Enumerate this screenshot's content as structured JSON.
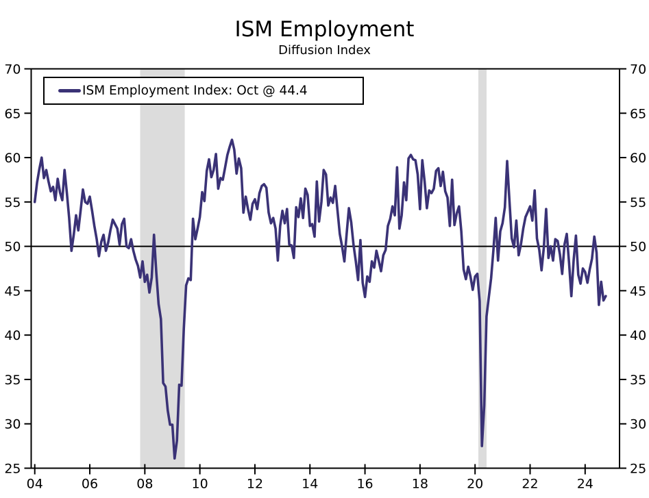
{
  "header": {
    "title": "ISM Employment",
    "subtitle": "Diffusion Index"
  },
  "legend": {
    "label": "ISM Employment Index: Oct @ 44.4",
    "swatch_color": "#3a3276"
  },
  "chart_data": {
    "type": "line",
    "title": "ISM Employment",
    "subtitle": "Diffusion Index",
    "ylim": [
      25,
      70
    ],
    "y_ticks": [
      25,
      30,
      35,
      40,
      45,
      50,
      55,
      60,
      65,
      70
    ],
    "y_ticks_labeled_both_sides": true,
    "x_range": [
      2003.87,
      2025.25
    ],
    "x_ticks": [
      {
        "year": 2004,
        "label": "04"
      },
      {
        "year": 2006,
        "label": "06"
      },
      {
        "year": 2008,
        "label": "08"
      },
      {
        "year": 2010,
        "label": "10"
      },
      {
        "year": 2012,
        "label": "12"
      },
      {
        "year": 2014,
        "label": "14"
      },
      {
        "year": 2016,
        "label": "16"
      },
      {
        "year": 2018,
        "label": "18"
      },
      {
        "year": 2020,
        "label": "20"
      },
      {
        "year": 2022,
        "label": "22"
      },
      {
        "year": 2024,
        "label": "24"
      }
    ],
    "reference_line": 50,
    "grid": false,
    "legend_position": "top-left",
    "band_color": "#dcdcdc",
    "recession_bands": [
      {
        "start": 2007.83,
        "end": 2009.45
      },
      {
        "start": 2020.12,
        "end": 2020.42
      }
    ],
    "series": [
      {
        "name": "ISM Employment Index",
        "latest_label": "Oct @ 44.4",
        "latest_value": 44.4,
        "color": "#3a3276",
        "frequency": "monthly",
        "start_year": 2004,
        "start_month": 1,
        "values": [
          55.0,
          57.2,
          58.7,
          60.0,
          57.7,
          58.6,
          57.3,
          56.2,
          56.7,
          55.2,
          57.6,
          56.1,
          55.2,
          58.6,
          56.0,
          53.2,
          49.5,
          51.3,
          53.5,
          51.8,
          54.0,
          56.4,
          55.0,
          54.8,
          55.6,
          54.0,
          52.3,
          50.8,
          48.9,
          50.5,
          51.3,
          49.5,
          50.4,
          51.8,
          53.0,
          52.5,
          52.0,
          50.2,
          52.5,
          53.1,
          50.0,
          49.8,
          50.8,
          49.5,
          48.5,
          47.8,
          46.5,
          48.3,
          46.0,
          46.8,
          44.8,
          46.5,
          51.3,
          47.0,
          43.5,
          41.8,
          34.6,
          34.2,
          31.5,
          29.9,
          29.9,
          26.1,
          28.1,
          34.4,
          34.3,
          40.7,
          45.6,
          46.4,
          46.2,
          53.1,
          50.8,
          52.0,
          53.3,
          56.1,
          55.1,
          58.5,
          59.8,
          57.8,
          58.6,
          60.4,
          56.5,
          57.7,
          57.5,
          58.9,
          60.3,
          61.2,
          62.0,
          60.9,
          58.2,
          59.9,
          58.8,
          53.8,
          55.6,
          54.2,
          53.0,
          54.8,
          55.3,
          54.2,
          56.0,
          56.8,
          57.0,
          56.6,
          53.8,
          52.6,
          53.2,
          52.0,
          48.4,
          52.3,
          54.0,
          52.6,
          54.2,
          50.2,
          50.1,
          48.7,
          54.4,
          53.3,
          55.4,
          53.2,
          56.5,
          55.8,
          52.3,
          52.5,
          51.1,
          57.3,
          52.8,
          55.0,
          58.6,
          58.1,
          54.6,
          55.5,
          54.9,
          56.8,
          54.1,
          51.4,
          50.0,
          48.3,
          51.4,
          54.3,
          52.7,
          50.2,
          48.3,
          46.2,
          50.7,
          45.9,
          44.3,
          46.6,
          46.0,
          48.3,
          47.6,
          49.5,
          48.4,
          47.2,
          49.0,
          49.6,
          52.3,
          53.1,
          54.5,
          53.5,
          58.9,
          52.0,
          53.5,
          57.2,
          55.2,
          59.9,
          60.3,
          59.8,
          59.7,
          58.1,
          54.2,
          59.7,
          57.3,
          54.3,
          56.3,
          56.0,
          56.5,
          58.5,
          58.8,
          56.8,
          58.4,
          56.2,
          55.5,
          52.3,
          57.5,
          52.4,
          53.7,
          54.5,
          51.7,
          47.4,
          46.3,
          47.7,
          46.6,
          45.1,
          46.6,
          46.9,
          43.8,
          27.5,
          32.1,
          42.1,
          44.3,
          46.4,
          49.6,
          53.2,
          48.4,
          51.7,
          52.6,
          54.4,
          59.6,
          55.1,
          50.9,
          49.9,
          52.9,
          49.0,
          50.2,
          52.0,
          53.3,
          53.9,
          54.5,
          52.9,
          56.3,
          50.9,
          49.6,
          47.3,
          49.9,
          54.2,
          48.7,
          50.0,
          48.4,
          50.8,
          50.6,
          49.1,
          46.9,
          50.2,
          51.4,
          48.1,
          44.4,
          48.5,
          51.2,
          46.8,
          45.8,
          47.5,
          47.1,
          45.9,
          47.4,
          48.6,
          51.1,
          49.3,
          43.4,
          46.0,
          43.9,
          44.4
        ]
      }
    ]
  }
}
